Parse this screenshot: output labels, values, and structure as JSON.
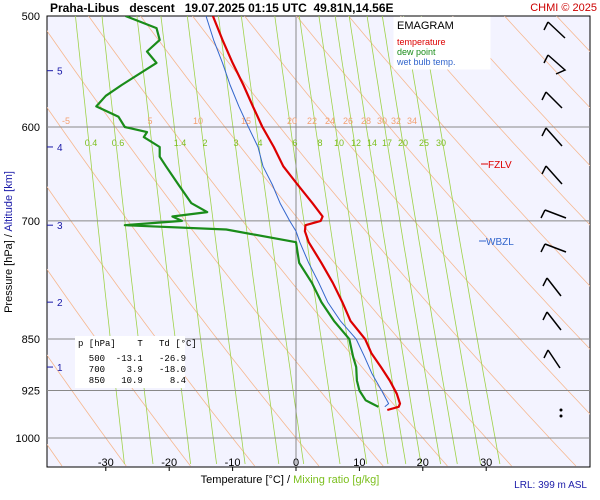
{
  "header": {
    "title": "Praha-Libus   descent   19.07.2025 01:15 UTC  49.81N,14.56E",
    "copyright": "CHMI © 2025"
  },
  "legend": {
    "title": "EMAGRAM",
    "items": [
      {
        "label": "temperature",
        "color": "#dd0000"
      },
      {
        "label": "dew point",
        "color": "#1a8c1a"
      },
      {
        "label": "wet bulb temp.",
        "color": "#3366cc"
      }
    ]
  },
  "axes": {
    "ylabel_part1": "Pressure [hPa]",
    "ylabel_sep": " / ",
    "ylabel_part2": "Altitude [km]",
    "xlabel_part1": "Temperature [°C]",
    "xlabel_sep": " / ",
    "xlabel_part2": "Mixing ratio [g/kg]"
  },
  "footer": {
    "lrl": "LRL: 399 m ASL"
  },
  "levels": {
    "fzlv": "FZLV",
    "wbzl": "WBZL"
  },
  "table": {
    "header": "p [hPa]    T   Td [°C]",
    "rows": [
      "  500  -13.1   -26.9",
      "  700    3.9   -18.0",
      "  850   10.9     8.4"
    ]
  },
  "chart_data": {
    "type": "line",
    "title": "EMAGRAM",
    "xlabel": "Temperature [°C]",
    "ylabel": "Pressure [hPa]",
    "xlim": [
      -39,
      46
    ],
    "ylim": [
      1000,
      500
    ],
    "y_log": true,
    "x_ticks": [
      -30,
      -20,
      -10,
      0,
      10,
      20,
      30
    ],
    "y_ticks": [
      500,
      600,
      700,
      850,
      925,
      1000
    ],
    "altitude_ticks_km": [
      {
        "label": "1",
        "p": 890
      },
      {
        "label": "2",
        "p": 800
      },
      {
        "label": "3",
        "p": 705
      },
      {
        "label": "4",
        "p": 620
      },
      {
        "label": "5",
        "p": 547
      }
    ],
    "mixing_ratio_labels": [
      "0.4",
      "0.6",
      "1.4",
      "2",
      "3",
      "4",
      "6",
      "8",
      "10",
      "12",
      "14",
      "17",
      "20",
      "25",
      "30"
    ],
    "dry_adiabat_labels": [
      "-5",
      "5",
      "10",
      "15",
      "20",
      "22",
      "24",
      "26",
      "28",
      "30",
      "32",
      "34"
    ],
    "series": [
      {
        "name": "temperature",
        "color": "#dd0000",
        "p": [
          500,
          520,
          540,
          560,
          580,
          600,
          620,
          640,
          660,
          680,
          695,
          700,
          705,
          712,
          725,
          750,
          775,
          800,
          825,
          850,
          870,
          890,
          910,
          930,
          945,
          950,
          955
        ],
        "t": [
          -13.1,
          -11.6,
          -10.0,
          -8.3,
          -6.8,
          -5.3,
          -3.5,
          -2.0,
          0.3,
          2.6,
          4.2,
          3.9,
          1.5,
          1.4,
          2.0,
          4.0,
          5.8,
          7.3,
          8.6,
          10.9,
          11.9,
          13.4,
          14.8,
          15.9,
          16.4,
          16.2,
          14.4
        ]
      },
      {
        "name": "dew point",
        "color": "#1a8c1a",
        "p": [
          500,
          510,
          520,
          530,
          540,
          560,
          570,
          580,
          590,
          600,
          605,
          610,
          620,
          630,
          640,
          660,
          680,
          690,
          695,
          700,
          705,
          710,
          725,
          750,
          775,
          800,
          825,
          850,
          875,
          890,
          910,
          925,
          940,
          945,
          950
        ],
        "t": [
          -26.9,
          -22.0,
          -21.5,
          -23.5,
          -22.0,
          -27.5,
          -30.0,
          -31.5,
          -28.0,
          -27.0,
          -23.5,
          -24.0,
          -21.5,
          -21.5,
          -20.5,
          -18.5,
          -16.5,
          -14.0,
          -19.5,
          -18.0,
          -27.0,
          -11.0,
          0.0,
          0.5,
          2.5,
          4.0,
          6.0,
          8.4,
          9.0,
          9.5,
          9.6,
          10.0,
          11.0,
          12.0,
          13.0
        ]
      },
      {
        "name": "wet bulb temp.",
        "color": "#3366cc",
        "p": [
          500,
          520,
          540,
          560,
          580,
          600,
          620,
          640,
          660,
          680,
          700,
          712,
          725,
          750,
          775,
          800,
          825,
          850,
          875,
          900,
          925,
          945,
          950
        ],
        "t": [
          -14.2,
          -13.0,
          -11.6,
          -10.4,
          -9.0,
          -7.5,
          -6.0,
          -5.2,
          -3.7,
          -2.5,
          -1.0,
          0.0,
          0.6,
          2.0,
          3.6,
          5.0,
          7.0,
          9.5,
          10.8,
          12.0,
          13.5,
          14.6,
          14.0
        ]
      }
    ]
  }
}
